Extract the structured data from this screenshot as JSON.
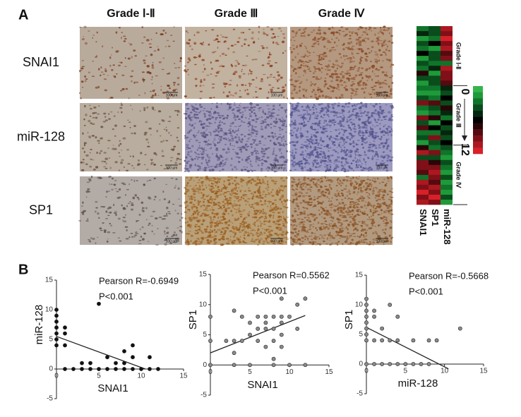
{
  "panel_a": {
    "label": "A",
    "columns": [
      "Grade Ⅰ-Ⅱ",
      "Grade Ⅲ",
      "Grade Ⅳ"
    ],
    "rows": [
      "SNAI1",
      "miR-128",
      "SP1"
    ],
    "scale_bar": "100 μm"
  },
  "panel_b": {
    "label": "B"
  },
  "chart_data": [
    {
      "type": "heatmap",
      "columns": [
        "SNAI1",
        "SP1",
        "miR-128"
      ],
      "groups": [
        "Grade Ⅰ-Ⅱ",
        "Grade Ⅲ",
        "Grade Ⅳ"
      ],
      "values": [
        [
          2,
          3,
          11
        ],
        [
          5,
          3,
          10
        ],
        [
          1,
          2,
          12
        ],
        [
          3,
          6,
          9
        ],
        [
          2,
          1,
          11
        ],
        [
          6,
          4,
          8
        ],
        [
          1,
          3,
          10
        ],
        [
          4,
          2,
          2
        ],
        [
          2,
          5,
          11
        ],
        [
          7,
          1,
          9
        ],
        [
          3,
          3,
          10
        ],
        [
          1,
          4,
          8
        ],
        [
          2,
          2,
          5
        ],
        [
          1,
          1,
          4
        ],
        [
          3,
          2,
          6
        ],
        [
          9,
          8,
          3
        ],
        [
          2,
          3,
          7
        ],
        [
          1,
          2,
          5
        ],
        [
          10,
          7,
          2
        ],
        [
          3,
          1,
          6
        ],
        [
          8,
          6,
          4
        ],
        [
          2,
          2,
          5
        ],
        [
          4,
          9,
          3
        ],
        [
          1,
          3,
          6
        ],
        [
          7,
          2,
          4
        ],
        [
          11,
          9,
          2
        ],
        [
          3,
          4,
          1
        ],
        [
          9,
          7,
          3
        ],
        [
          10,
          10,
          2
        ],
        [
          8,
          11,
          1
        ],
        [
          2,
          9,
          3
        ],
        [
          11,
          8,
          1
        ],
        [
          10,
          11,
          2
        ],
        [
          12,
          10,
          1
        ],
        [
          9,
          12,
          3
        ],
        [
          11,
          9,
          1
        ]
      ],
      "colorbar": {
        "ticks": [
          0,
          12
        ],
        "colors": [
          "#33b54c",
          "#1f9a3a",
          "#10742a",
          "#0a4d1c",
          "#05260e",
          "#000000",
          "#2a0508",
          "#550a10",
          "#801018",
          "#ac1820",
          "#d82028"
        ]
      }
    },
    {
      "type": "scatter",
      "xlabel": "SNAI1",
      "ylabel": "miR-128",
      "annotations": [
        "Pearson R=-0.6949",
        "P<0.001"
      ],
      "xlim": [
        0,
        15
      ],
      "ylim": [
        -5,
        15
      ],
      "xticks": [
        0,
        5,
        10,
        15
      ],
      "yticks": [
        -5,
        0,
        5,
        10,
        15
      ],
      "color": "#111111",
      "x": [
        0,
        0,
        0,
        0,
        0,
        0,
        0,
        1,
        1,
        1,
        1,
        2,
        3,
        3,
        4,
        4,
        5,
        5,
        6,
        6,
        7,
        7,
        8,
        8,
        8,
        9,
        9,
        9,
        10,
        11,
        11,
        12
      ],
      "y": [
        10,
        9,
        8,
        7,
        6,
        5,
        4,
        7,
        6,
        4,
        0,
        0,
        0,
        1,
        1,
        0,
        11,
        0,
        0,
        2,
        0,
        1,
        0,
        3,
        1,
        4,
        0,
        2,
        0,
        2,
        0,
        0
      ],
      "fit": {
        "x": [
          0,
          10.5
        ],
        "y": [
          5.5,
          0
        ]
      }
    },
    {
      "type": "scatter",
      "xlabel": "SNAI1",
      "ylabel": "SP1",
      "annotations": [
        "Pearson R=0.5562",
        "P<0.001"
      ],
      "xlim": [
        0,
        15
      ],
      "ylim": [
        -5,
        15
      ],
      "xticks": [
        0,
        5,
        10,
        15
      ],
      "yticks": [
        -5,
        0,
        5,
        10,
        15
      ],
      "color": "#8a8a8a",
      "x": [
        0,
        0,
        0,
        2,
        3,
        3,
        3,
        3,
        4,
        4,
        5,
        5,
        5,
        6,
        6,
        6,
        7,
        7,
        7,
        7,
        8,
        8,
        8,
        8,
        8,
        9,
        9,
        9,
        9,
        9,
        10,
        10,
        11,
        11,
        12,
        12
      ],
      "y": [
        8,
        4,
        0,
        4,
        9,
        4,
        2,
        0,
        8,
        4,
        7,
        5,
        0,
        8,
        6,
        4,
        7,
        6,
        8,
        3,
        8,
        6,
        4,
        1,
        0,
        8,
        11,
        5,
        3,
        7,
        8,
        0,
        10,
        6,
        11,
        0
      ],
      "fit": {
        "x": [
          0,
          12
        ],
        "y": [
          2,
          8.2
        ]
      }
    },
    {
      "type": "scatter",
      "xlabel": "miR-128",
      "ylabel": "SP1",
      "annotations": [
        "Pearson R=-0.5668",
        "P<0.001"
      ],
      "xlim": [
        0,
        15
      ],
      "ylim": [
        -5,
        15
      ],
      "xticks": [
        0,
        5,
        10,
        15
      ],
      "yticks": [
        -5,
        0,
        5,
        10,
        15
      ],
      "color": "#8a8a8a",
      "x": [
        0,
        0,
        0,
        0,
        0,
        0,
        0,
        0,
        0,
        1,
        1,
        1,
        1,
        2,
        2,
        2,
        3,
        3,
        3,
        4,
        4,
        4,
        5,
        6,
        6,
        7,
        8,
        8,
        9,
        12
      ],
      "y": [
        11,
        10,
        9,
        8,
        7,
        6,
        5,
        4,
        0,
        9,
        8,
        4,
        0,
        6,
        4,
        0,
        10,
        4,
        0,
        8,
        4,
        0,
        0,
        4,
        0,
        0,
        4,
        0,
        4,
        6
      ],
      "fit": {
        "x": [
          0,
          10.5
        ],
        "y": [
          6.2,
          -0.8
        ]
      }
    }
  ]
}
